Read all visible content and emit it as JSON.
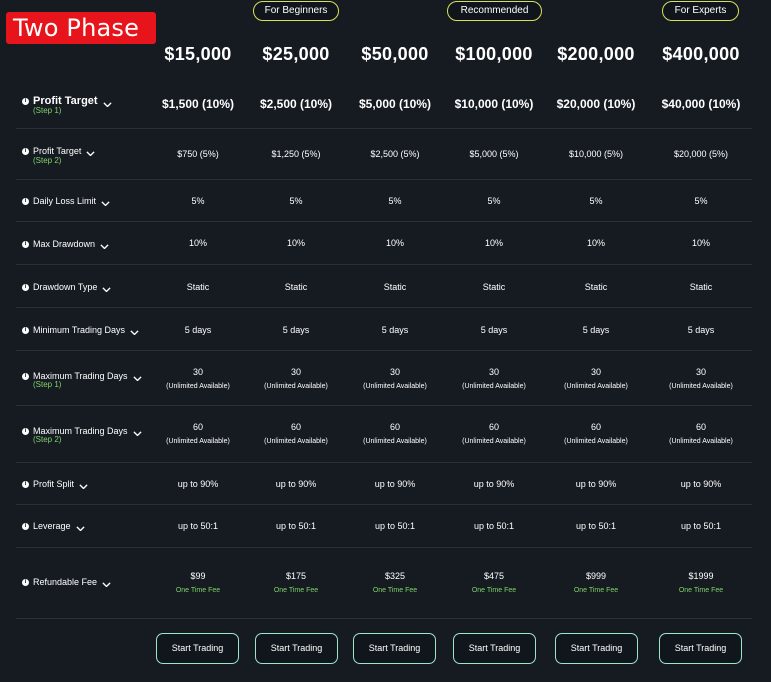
{
  "phase_label": "Two Phase",
  "tags": [
    "For Beginners",
    "Recommended",
    "For Experts"
  ],
  "accounts": [
    "$15,000",
    "$25,000",
    "$50,000",
    "$100,000",
    "$200,000",
    "$400,000"
  ],
  "rows": [
    {
      "label": "Profit Target",
      "sub": "(Step 1)",
      "values": [
        "$1,500 (10%)",
        "$2,500 (10%)",
        "$5,000 (10%)",
        "$10,000 (10%)",
        "$20,000 (10%)",
        "$40,000 (10%)"
      ]
    },
    {
      "label": "Profit Target",
      "sub": "(Step 2)",
      "values": [
        "$750 (5%)",
        "$1,250 (5%)",
        "$2,500 (5%)",
        "$5,000 (5%)",
        "$10,000 (5%)",
        "$20,000 (5%)"
      ]
    },
    {
      "label": "Daily Loss Limit",
      "values": [
        "5%",
        "5%",
        "5%",
        "5%",
        "5%",
        "5%"
      ]
    },
    {
      "label": "Max Drawdown",
      "values": [
        "10%",
        "10%",
        "10%",
        "10%",
        "10%",
        "10%"
      ]
    },
    {
      "label": "Drawdown Type",
      "values": [
        "Static",
        "Static",
        "Static",
        "Static",
        "Static",
        "Static"
      ]
    },
    {
      "label": "Minimum Trading Days",
      "values": [
        "5 days",
        "5 days",
        "5 days",
        "5 days",
        "5 days",
        "5 days"
      ]
    },
    {
      "label": "Maximum Trading Days",
      "sub": "(Step 1)",
      "values": [
        "30",
        "30",
        "30",
        "30",
        "30",
        "30"
      ],
      "note": "(Unlimited Available)"
    },
    {
      "label": "Maximum Trading Days",
      "sub": "(Step 2)",
      "values": [
        "60",
        "60",
        "60",
        "60",
        "60",
        "60"
      ],
      "note": "(Unlimited Available)"
    },
    {
      "label": "Profit Split",
      "values": [
        "up to 90%",
        "up to 90%",
        "up to 90%",
        "up to 90%",
        "up to 90%",
        "up to 90%"
      ]
    },
    {
      "label": "Leverage",
      "values": [
        "up to 50:1",
        "up to 50:1",
        "up to 50:1",
        "up to 50:1",
        "up to 50:1",
        "up to 50:1"
      ]
    },
    {
      "label": "Refundable Fee",
      "values": [
        "$99",
        "$175",
        "$325",
        "$475",
        "$999",
        "$1999"
      ],
      "note": "One Time Fee"
    }
  ],
  "button_label": "Start Trading",
  "colors": {
    "background": "#161b22",
    "badge": "#e8141b",
    "accent_green": "#7fd36a",
    "pill_border": "#d7e05a",
    "button_border": "#9ee6c8"
  }
}
